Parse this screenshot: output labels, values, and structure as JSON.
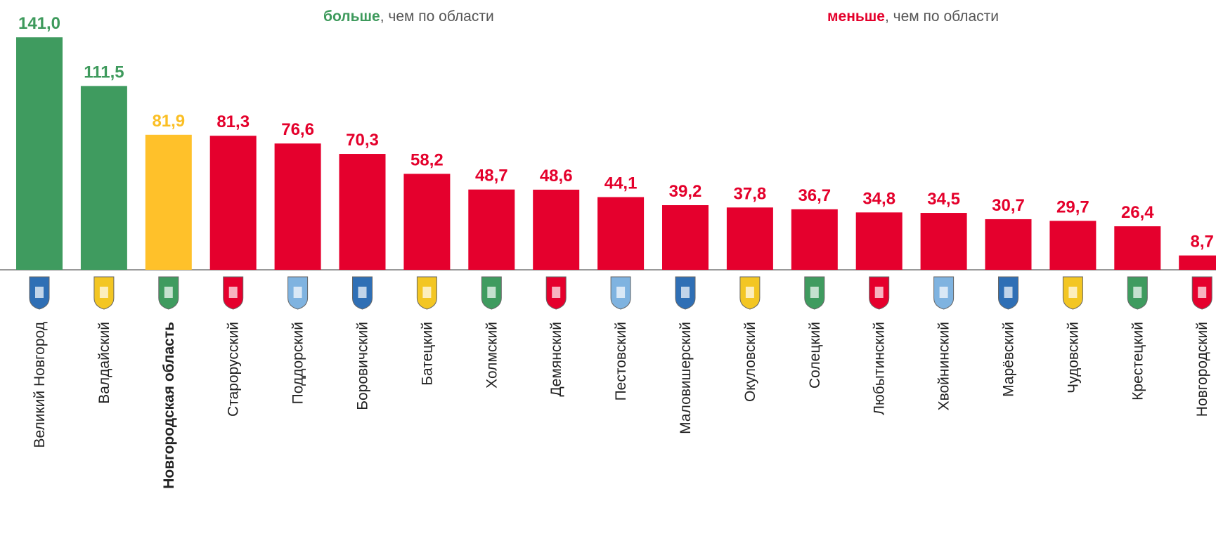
{
  "chart_data": {
    "type": "bar",
    "annotations": [
      {
        "bold": "больше",
        "text": ", чем по области",
        "color": "#3e9a5c"
      },
      {
        "bold": "меньше",
        "text": ", чем по области",
        "color": "#e4002b"
      }
    ],
    "categories": [
      "Великий Новгород",
      "Валдайский",
      "Новгородская область",
      "Старорусский",
      "Поддорский",
      "Боровичский",
      "Батецкий",
      "Холмский",
      "Демянский",
      "Пестовский",
      "Маловишерский",
      "Окуловский",
      "Солецкий",
      "Любытинский",
      "Хвойнинский",
      "Марёвский",
      "Чудовский",
      "Крестецкий",
      "Новгородский"
    ],
    "values": [
      141.0,
      111.5,
      81.9,
      81.3,
      76.6,
      70.3,
      58.2,
      48.7,
      48.6,
      44.1,
      39.2,
      37.8,
      36.7,
      34.8,
      34.5,
      30.7,
      29.7,
      26.4,
      8.7
    ],
    "value_labels": [
      "141,0",
      "111,5",
      "81,9",
      "81,3",
      "76,6",
      "70,3",
      "58,2",
      "48,7",
      "48,6",
      "44,1",
      "39,2",
      "37,8",
      "36,7",
      "34,8",
      "34,5",
      "30,7",
      "29,7",
      "26,4",
      "8,7"
    ],
    "colors": [
      "#3f9b5f",
      "#3f9b5f",
      "#ffc12a",
      "#e5002d",
      "#e5002d",
      "#e5002d",
      "#e5002d",
      "#e5002d",
      "#e5002d",
      "#e5002d",
      "#e5002d",
      "#e5002d",
      "#e5002d",
      "#e5002d",
      "#e5002d",
      "#e5002d",
      "#e5002d",
      "#e5002d",
      "#e5002d"
    ],
    "label_colors": [
      "#3e9a5c",
      "#3e9a5c",
      "#fbbf24",
      "#e4002b",
      "#e4002b",
      "#e4002b",
      "#e4002b",
      "#e4002b",
      "#e4002b",
      "#e4002b",
      "#e4002b",
      "#e4002b",
      "#e4002b",
      "#e4002b",
      "#e4002b",
      "#e4002b",
      "#e4002b",
      "#e4002b",
      "#e4002b"
    ],
    "bold_index": 2,
    "ylim": [
      0,
      150
    ]
  }
}
